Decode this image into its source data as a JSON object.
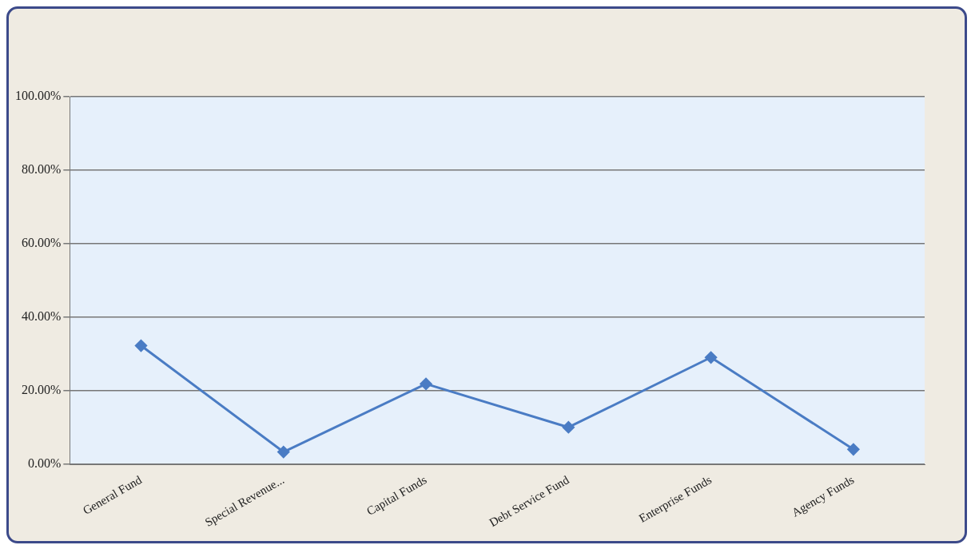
{
  "chart_data": {
    "type": "line",
    "categories": [
      "General Fund",
      "Special Revenue...",
      "Capital Funds",
      "Debt Service Fund",
      "Enterprise Funds",
      "Agency Funds"
    ],
    "series": [
      {
        "color": "#4a7cc4",
        "values": [
          32.3,
          3.4,
          21.9,
          10.1,
          29.1,
          4.1
        ]
      }
    ],
    "ylim": [
      0,
      100
    ],
    "yticks": [
      {
        "value": 0,
        "label": "0.00%"
      },
      {
        "value": 20,
        "label": "20.00%"
      },
      {
        "value": 40,
        "label": "40.00%"
      },
      {
        "value": 60,
        "label": "60.00%"
      },
      {
        "value": 80,
        "label": "80.00%"
      },
      {
        "value": 100,
        "label": "100.00%"
      }
    ],
    "grid": "y",
    "marker": "diamond",
    "line_style": "solid",
    "legend": false
  }
}
